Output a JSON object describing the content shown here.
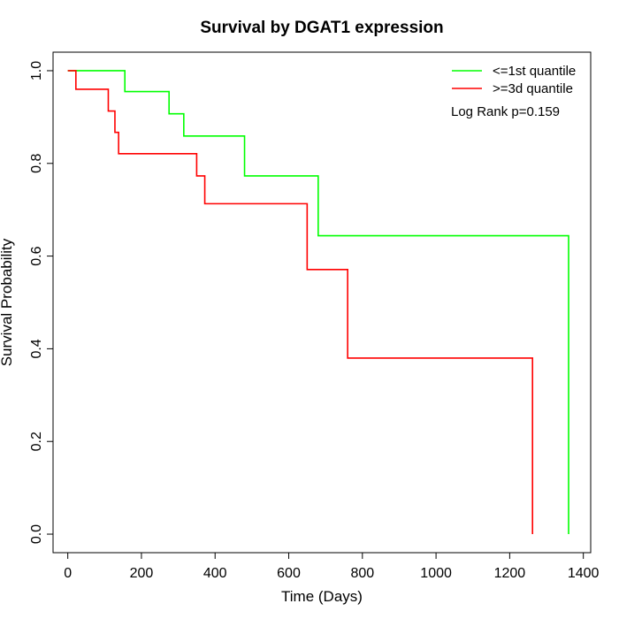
{
  "chart_data": {
    "type": "line",
    "title": "Survival by DGAT1 expression",
    "xlabel": "Time (Days)",
    "ylabel": "Survival Probability",
    "xlim": [
      -40,
      1420
    ],
    "ylim": [
      -0.04,
      1.04
    ],
    "xticks": [
      0,
      200,
      400,
      600,
      800,
      1000,
      1200,
      1400
    ],
    "yticks": [
      0.0,
      0.2,
      0.4,
      0.6,
      0.8,
      1.0
    ],
    "xtick_labels": [
      "0",
      "200",
      "400",
      "600",
      "800",
      "1000",
      "1200",
      "1400"
    ],
    "ytick_labels": [
      "0.0",
      "0.2",
      "0.4",
      "0.6",
      "0.8",
      "1.0"
    ],
    "grid": false,
    "legend_position": "top-right",
    "annotation": "Log Rank p=0.159",
    "series": [
      {
        "name": "<=1st quantile",
        "color": "#00ff00",
        "step": true,
        "x": [
          0,
          155,
          275,
          315,
          480,
          680,
          1360,
          1360
        ],
        "y": [
          1.0,
          0.955,
          0.907,
          0.859,
          0.773,
          0.644,
          0.644,
          0.0
        ]
      },
      {
        "name": ">=3d quantile",
        "color": "#ff0000",
        "step": true,
        "x": [
          0,
          22,
          110,
          128,
          138,
          350,
          372,
          650,
          760,
          1262,
          1262
        ],
        "y": [
          1.0,
          0.96,
          0.913,
          0.867,
          0.821,
          0.773,
          0.713,
          0.571,
          0.38,
          0.38,
          0.0
        ]
      }
    ]
  }
}
